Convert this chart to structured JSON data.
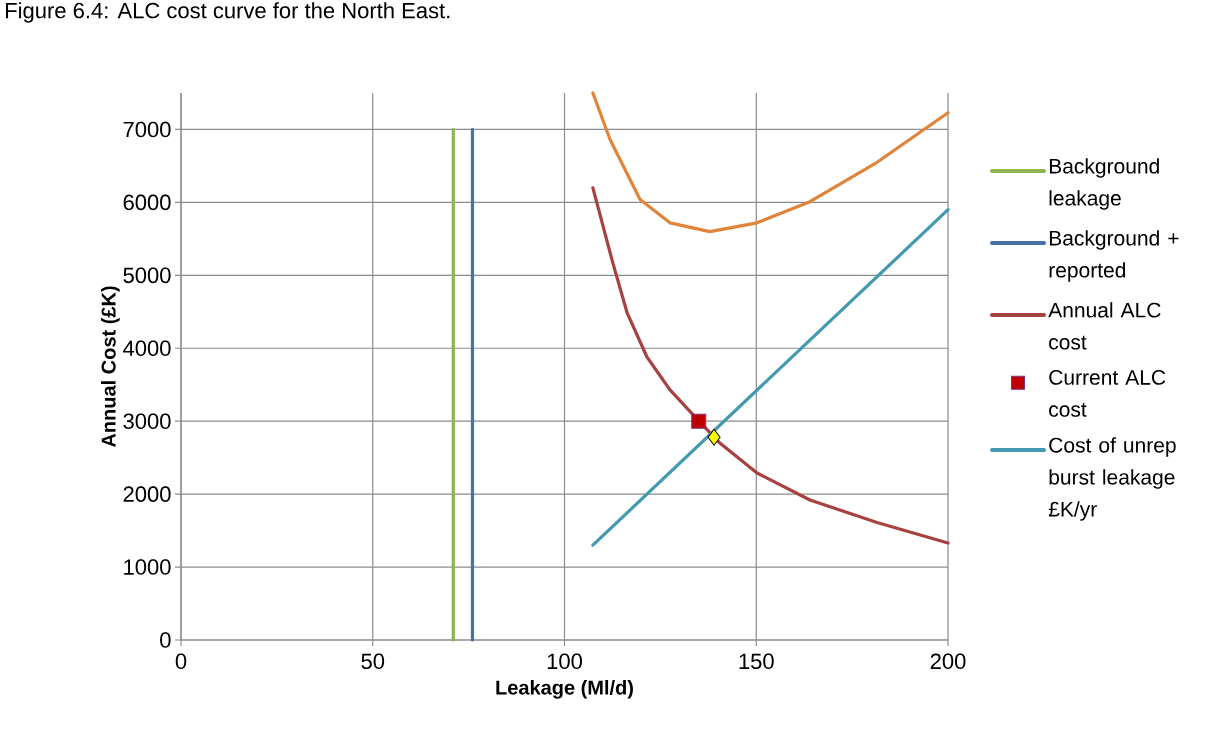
{
  "chart_data": {
    "type": "line",
    "title": "Figure 6.4: ALC cost curve for the North East.",
    "xlabel": "Leakage (Ml/d)",
    "ylabel": "Annual Cost (£K)",
    "xlim": [
      0,
      200
    ],
    "xticks": [
      0,
      50,
      100,
      150,
      200
    ],
    "ylim": [
      0,
      7500
    ],
    "yticks": [
      0,
      1000,
      2000,
      3000,
      4000,
      5000,
      6000,
      7000
    ],
    "grid": true,
    "legend": "right",
    "series": [
      {
        "name": "Background leakage",
        "color": "#8db44f",
        "x": [
          71,
          71
        ],
        "values": [
          0,
          7000
        ]
      },
      {
        "name": "Background + reported",
        "color": "#4572a7",
        "x": [
          76,
          76
        ],
        "values": [
          0,
          7000
        ]
      },
      {
        "color": "#e0843a",
        "x": [
          107.4,
          111.9,
          119.7,
          127.5,
          137.9,
          150.2,
          164,
          181.5,
          200
        ],
        "values": [
          7500,
          6860,
          6040,
          5720,
          5600,
          5720,
          6010,
          6550,
          7230
        ]
      },
      {
        "name": "Annual ALC cost",
        "color": "#a6423f",
        "x": [
          107.4,
          112.6,
          116.3,
          121.5,
          127.5,
          133.5,
          140.5,
          150.2,
          164,
          181.5,
          200
        ],
        "values": [
          6200,
          5170,
          4490,
          3880,
          3430,
          3090,
          2700,
          2290,
          1920,
          1610,
          1330
        ]
      },
      {
        "name": "Current ALC cost",
        "type": "scatter",
        "marker": "square",
        "color": "#c00000",
        "x": [
          135
        ],
        "values": [
          3000
        ]
      },
      {
        "name": "Cost of unrep burst leakage £K/yr",
        "color": "#4299b0",
        "x": [
          107.4,
          200
        ],
        "values": [
          1300,
          5900
        ]
      },
      {
        "type": "scatter",
        "marker": "diamond",
        "color": "#ffff00",
        "x": [
          139
        ],
        "values": [
          2780
        ]
      }
    ]
  }
}
